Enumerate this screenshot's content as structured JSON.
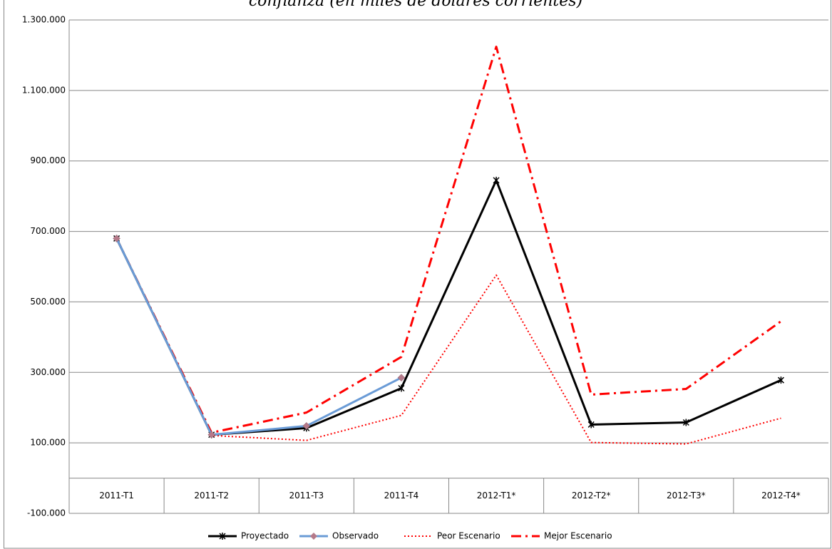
{
  "chart_data": {
    "type": "line",
    "title": "confianza (en miles de dólares corrientes)",
    "categories": [
      "2011-T1",
      "2011-T2",
      "2011-T3",
      "2011-T4",
      "2012-T1*",
      "2012-T2*",
      "2012-T3*",
      "2012-T4*"
    ],
    "series": [
      {
        "name": "Proyectado",
        "color": "#000000",
        "values": [
          680000,
          123000,
          142000,
          255000,
          845000,
          152000,
          158000,
          278000
        ]
      },
      {
        "name": "Observado",
        "color": "#6a9bd6",
        "values": [
          680000,
          123000,
          148000,
          285000,
          null,
          null,
          null,
          null
        ]
      },
      {
        "name": "Peor Escenario",
        "color": "#ff0000",
        "values": [
          680000,
          121000,
          107000,
          178000,
          576000,
          101000,
          97000,
          170000
        ]
      },
      {
        "name": "Mejor Escenario",
        "color": "#ff0000",
        "values": [
          680000,
          129000,
          186000,
          344000,
          1224000,
          237000,
          253000,
          445000
        ]
      }
    ],
    "ylim": [
      -100000,
      1300000
    ],
    "yticks": [
      {
        "value": -100000,
        "label": "-100.000"
      },
      {
        "value": 100000,
        "label": "100.000"
      },
      {
        "value": 300000,
        "label": "300.000"
      },
      {
        "value": 500000,
        "label": "500.000"
      },
      {
        "value": 700000,
        "label": "700.000"
      },
      {
        "value": 900000,
        "label": "900.000"
      },
      {
        "value": 1100000,
        "label": "1.100.000"
      },
      {
        "value": 1300000,
        "label": "1.300.000"
      }
    ],
    "grid": true,
    "legend": "bottom"
  }
}
